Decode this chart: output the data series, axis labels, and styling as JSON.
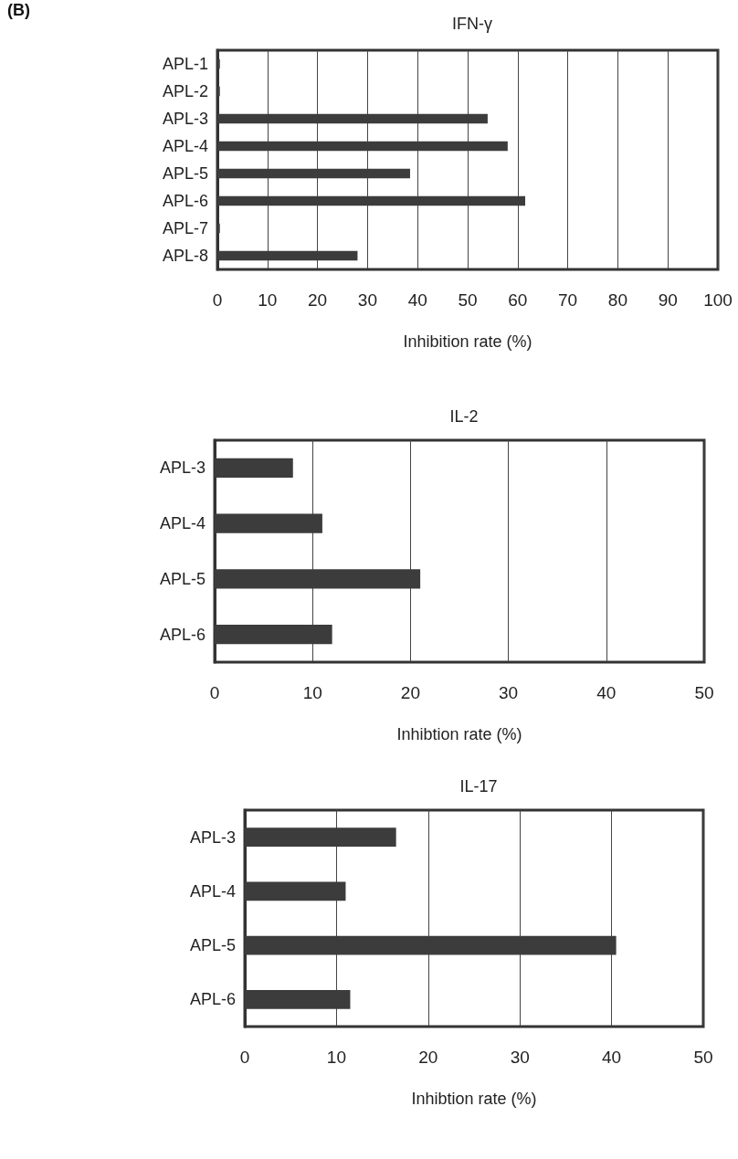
{
  "chart_data": [
    {
      "type": "bar",
      "orientation": "horizontal",
      "title": "IFN-γ",
      "annotations": [
        "(B)"
      ],
      "xlabel": "Inhibition rate (%)",
      "categories": [
        "APL-1",
        "APL-2",
        "APL-3",
        "APL-4",
        "APL-5",
        "APL-6",
        "APL-7",
        "APL-8"
      ],
      "color": "#3c3c3c",
      "values": [
        0.5,
        0.5,
        54,
        58,
        38.5,
        61.5,
        0.5,
        28
      ],
      "xlim": [
        0,
        100
      ],
      "xticks": [
        0,
        10,
        20,
        30,
        40,
        50,
        60,
        70,
        80,
        90,
        100
      ],
      "grid": "x"
    },
    {
      "type": "bar",
      "orientation": "horizontal",
      "title": "IL-2",
      "xlabel": "Inhibtion rate (%)",
      "categories": [
        "APL-3",
        "APL-4",
        "APL-5",
        "APL-6"
      ],
      "color": "#3c3c3c",
      "values": [
        8,
        11,
        21,
        12
      ],
      "xlim": [
        0,
        50
      ],
      "xticks": [
        0,
        10,
        20,
        30,
        40,
        50
      ],
      "grid": "x"
    },
    {
      "type": "bar",
      "orientation": "horizontal",
      "title": "IL-17",
      "xlabel": "Inhibtion rate (%)",
      "categories": [
        "APL-3",
        "APL-4",
        "APL-5",
        "APL-6"
      ],
      "color": "#3c3c3c",
      "values": [
        16.5,
        11,
        40.5,
        11.5
      ],
      "xlim": [
        0,
        50
      ],
      "xticks": [
        0,
        10,
        20,
        30,
        40,
        50
      ],
      "grid": "x"
    }
  ]
}
